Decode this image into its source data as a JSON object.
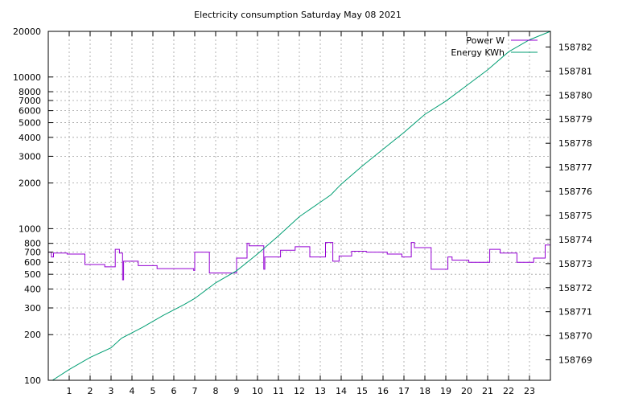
{
  "chart_data": {
    "type": "line",
    "title": "Electricity consumption Saturday May 08 2021",
    "xlabel": "",
    "ylabel": "",
    "y2label": "",
    "x_range": [
      0,
      24
    ],
    "x_ticks": [
      "1",
      "2",
      "3",
      "4",
      "5",
      "6",
      "7",
      "8",
      "9",
      "10",
      "11",
      "12",
      "13",
      "14",
      "15",
      "16",
      "17",
      "18",
      "19",
      "20",
      "21",
      "22",
      "23"
    ],
    "y_scale": "log",
    "y_range": [
      100,
      20000
    ],
    "y_ticks": [
      "100",
      "200",
      "300",
      "400",
      "500",
      "600",
      "700",
      "800",
      "1000",
      "2000",
      "3000",
      "4000",
      "5000",
      "6000",
      "7000",
      "8000",
      "10000",
      "20000"
    ],
    "y2_range": [
      158768.15,
      158782.65
    ],
    "y2_ticks": [
      "158769",
      "158770",
      "158771",
      "158772",
      "158773",
      "158774",
      "158775",
      "158776",
      "158777",
      "158778",
      "158779",
      "158780",
      "158781",
      "158782"
    ],
    "grid": true,
    "legend_position": "top-right",
    "series": [
      {
        "name": "Power W",
        "axis": "left",
        "color": "#9400d3",
        "points": [
          [
            0,
            700
          ],
          [
            0.15,
            700
          ],
          [
            0.15,
            650
          ],
          [
            0.25,
            650
          ],
          [
            0.25,
            690
          ],
          [
            0.9,
            690
          ],
          [
            0.9,
            680
          ],
          [
            1.75,
            680
          ],
          [
            1.75,
            580
          ],
          [
            2.7,
            580
          ],
          [
            2.7,
            560
          ],
          [
            3.2,
            560
          ],
          [
            3.2,
            730
          ],
          [
            3.4,
            730
          ],
          [
            3.4,
            690
          ],
          [
            3.55,
            690
          ],
          [
            3.55,
            460
          ],
          [
            3.6,
            460
          ],
          [
            3.6,
            610
          ],
          [
            4.3,
            610
          ],
          [
            4.3,
            570
          ],
          [
            5.2,
            570
          ],
          [
            5.2,
            545
          ],
          [
            6.95,
            545
          ],
          [
            6.95,
            530
          ],
          [
            7.0,
            530
          ],
          [
            7.0,
            700
          ],
          [
            7.7,
            700
          ],
          [
            7.7,
            510
          ],
          [
            9.0,
            510
          ],
          [
            9.0,
            640
          ],
          [
            9.5,
            640
          ],
          [
            9.5,
            800
          ],
          [
            9.6,
            800
          ],
          [
            9.6,
            770
          ],
          [
            10.3,
            770
          ],
          [
            10.3,
            540
          ],
          [
            10.35,
            540
          ],
          [
            10.35,
            650
          ],
          [
            11.1,
            650
          ],
          [
            11.1,
            720
          ],
          [
            11.8,
            720
          ],
          [
            11.8,
            760
          ],
          [
            12.5,
            760
          ],
          [
            12.5,
            650
          ],
          [
            13.25,
            650
          ],
          [
            13.25,
            810
          ],
          [
            13.6,
            810
          ],
          [
            13.6,
            610
          ],
          [
            13.9,
            610
          ],
          [
            13.9,
            660
          ],
          [
            14.5,
            660
          ],
          [
            14.5,
            710
          ],
          [
            15.2,
            710
          ],
          [
            15.2,
            700
          ],
          [
            16.2,
            700
          ],
          [
            16.2,
            680
          ],
          [
            16.9,
            680
          ],
          [
            16.9,
            650
          ],
          [
            17.35,
            650
          ],
          [
            17.35,
            810
          ],
          [
            17.5,
            810
          ],
          [
            17.5,
            750
          ],
          [
            18.3,
            750
          ],
          [
            18.3,
            540
          ],
          [
            19.1,
            540
          ],
          [
            19.1,
            650
          ],
          [
            19.3,
            650
          ],
          [
            19.3,
            620
          ],
          [
            20.1,
            620
          ],
          [
            20.1,
            600
          ],
          [
            21.1,
            600
          ],
          [
            21.1,
            730
          ],
          [
            21.6,
            730
          ],
          [
            21.6,
            690
          ],
          [
            22.4,
            690
          ],
          [
            22.4,
            600
          ],
          [
            23.2,
            600
          ],
          [
            23.2,
            640
          ],
          [
            23.75,
            640
          ],
          [
            23.75,
            780
          ],
          [
            24,
            780
          ]
        ]
      },
      {
        "name": "Energy KWh",
        "axis": "right",
        "color": "#009e73",
        "points": [
          [
            0.2,
            158768.15
          ],
          [
            1,
            158768.6
          ],
          [
            2,
            158769.1
          ],
          [
            3,
            158769.5
          ],
          [
            3.5,
            158769.9
          ],
          [
            4.5,
            158770.35
          ],
          [
            5.5,
            158770.85
          ],
          [
            6.5,
            158771.3
          ],
          [
            7,
            158771.55
          ],
          [
            8,
            158772.2
          ],
          [
            9,
            158772.7
          ],
          [
            9.5,
            158773.05
          ],
          [
            10,
            158773.4
          ],
          [
            11,
            158774.15
          ],
          [
            12,
            158774.95
          ],
          [
            13,
            158775.55
          ],
          [
            13.5,
            158775.85
          ],
          [
            14,
            158776.3
          ],
          [
            15,
            158777.05
          ],
          [
            16,
            158777.75
          ],
          [
            17,
            158778.45
          ],
          [
            18,
            158779.2
          ],
          [
            19,
            158779.75
          ],
          [
            20,
            158780.4
          ],
          [
            21,
            158781.05
          ],
          [
            22,
            158781.8
          ],
          [
            23,
            158782.3
          ],
          [
            24,
            158782.65
          ]
        ]
      }
    ]
  }
}
